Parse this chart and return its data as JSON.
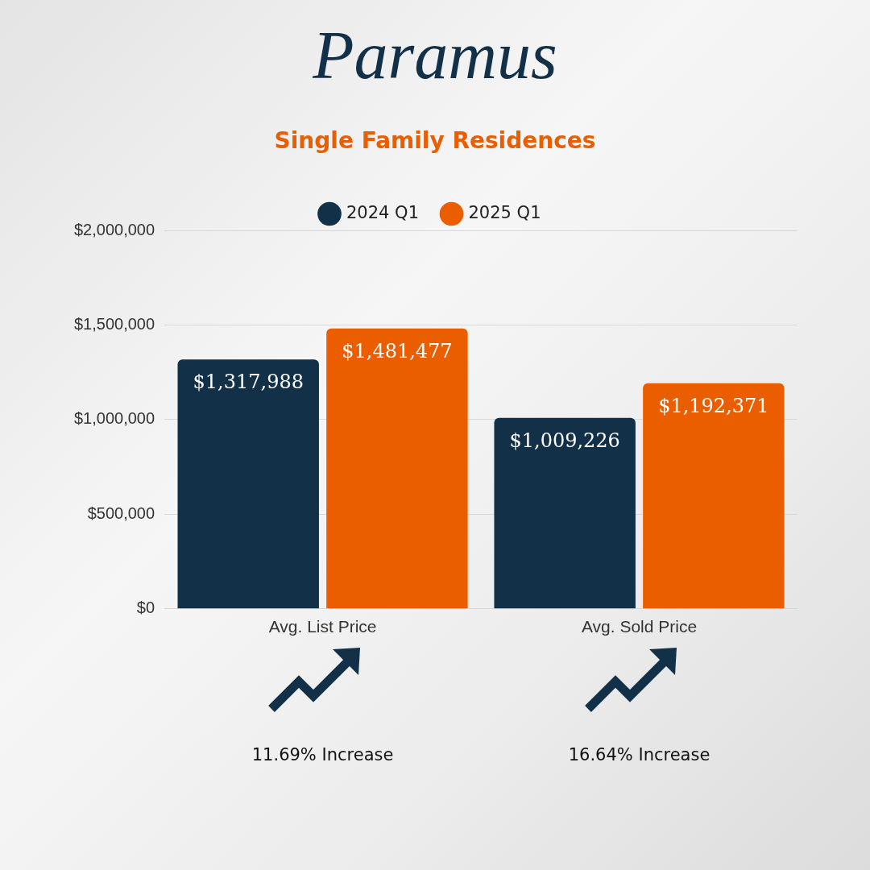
{
  "chart_data": {
    "type": "bar",
    "title": "Paramus",
    "subtitle": "Single Family Residences",
    "categories": [
      "Avg. List Price",
      "Avg. Sold Price"
    ],
    "series": [
      {
        "name": "2024 Q1",
        "color": "#133049",
        "values": [
          1317988,
          1009226
        ],
        "value_labels": [
          "$1,317,988",
          "$1,009,226"
        ]
      },
      {
        "name": "2025 Q1",
        "color": "#eb5e00",
        "values": [
          1481477,
          1192371
        ],
        "value_labels": [
          "$1,481,477",
          "$1,192,371"
        ]
      }
    ],
    "ylim": [
      0,
      2000000
    ],
    "yticks": [
      {
        "value": 0,
        "label": "$0"
      },
      {
        "value": 500000,
        "label": "$500,000"
      },
      {
        "value": 1000000,
        "label": "$1,000,000"
      },
      {
        "value": 1500000,
        "label": "$1,500,000"
      },
      {
        "value": 2000000,
        "label": "$2,000,000"
      }
    ],
    "grid": "y",
    "legend": "top",
    "annotations": [
      "11.69% Increase",
      "16.64% Increase"
    ]
  }
}
